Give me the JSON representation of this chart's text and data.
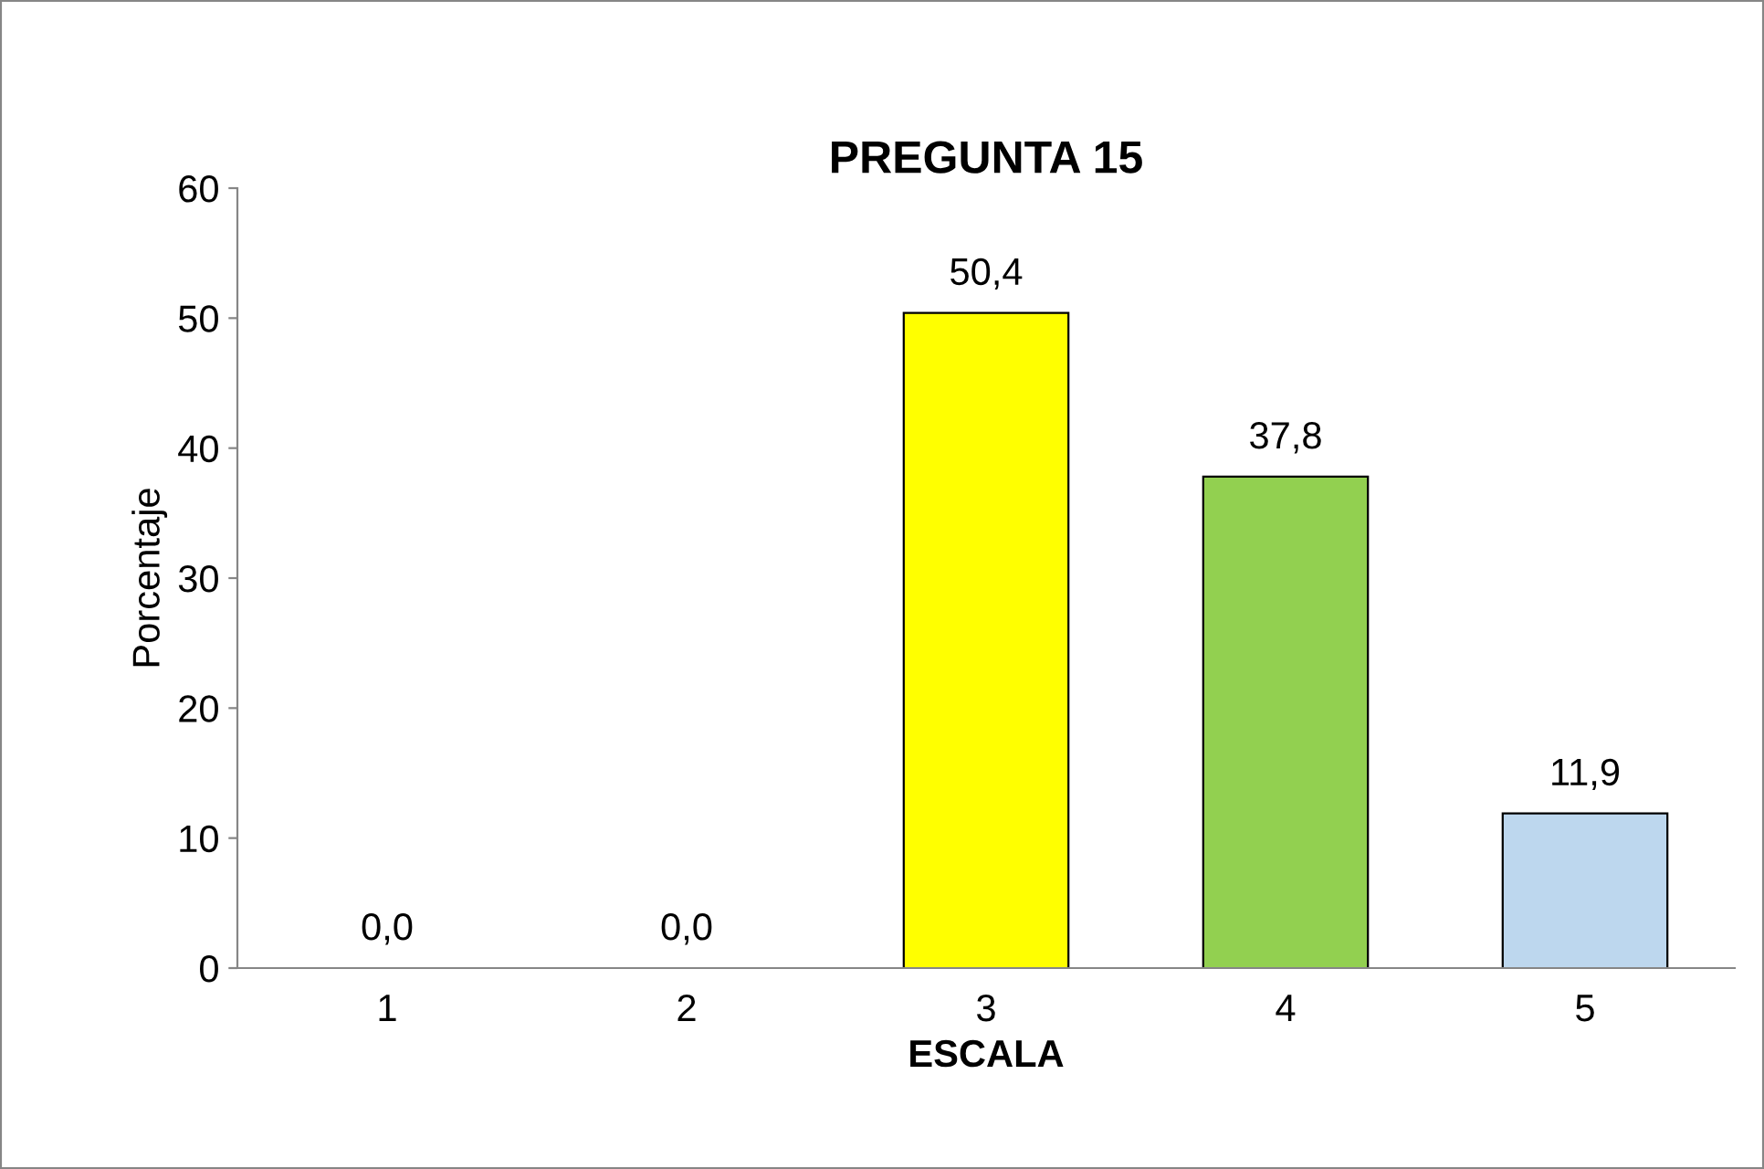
{
  "chart_data": {
    "type": "bar",
    "title": "PREGUNTA 15",
    "xlabel": "ESCALA",
    "ylabel": "Porcentaje",
    "categories": [
      "1",
      "2",
      "3",
      "4",
      "5"
    ],
    "values": [
      0.0,
      0.0,
      50.4,
      37.8,
      11.9
    ],
    "colors": [
      "#000000",
      "#000000",
      "#ffff00",
      "#92d050",
      "#bdd7ee"
    ],
    "value_labels": [
      "0,0",
      "0,0",
      "50,4",
      "37,8",
      "11,9"
    ],
    "ylim": [
      0,
      60
    ],
    "yticks": [
      0,
      10,
      20,
      30,
      40,
      50,
      60
    ],
    "grid": false,
    "legend": false
  }
}
